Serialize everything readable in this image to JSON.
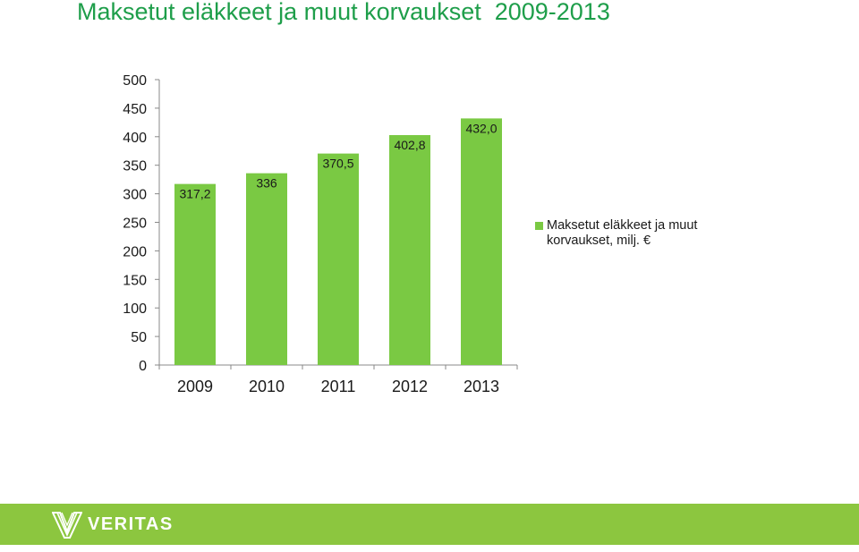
{
  "slide": {
    "title": "Maksetut eläkkeet ja muut korvaukset  2009-2013",
    "logo_text": "VERITAS",
    "footer_color": "#8cc63f",
    "title_color": "#1e9e4a"
  },
  "legend": {
    "label": "Maksetut eläkkeet ja muut korvaukset, milj. €",
    "placement": "right"
  },
  "chart_data": {
    "type": "bar",
    "title": "Maksetut eläkkeet ja muut korvaukset  2009-2013",
    "categories": [
      "2009",
      "2010",
      "2011",
      "2012",
      "2013"
    ],
    "series": [
      {
        "name": "Maksetut eläkkeet ja muut korvaukset, milj. €",
        "values": [
          317.2,
          336,
          370.5,
          402.8,
          432.0
        ],
        "labels": [
          "317,2",
          "336",
          "370,5",
          "402,8",
          "432,0"
        ],
        "color": "#7ac943"
      }
    ],
    "ylim": [
      0,
      500
    ],
    "yticks": [
      0,
      50,
      100,
      150,
      200,
      250,
      300,
      350,
      400,
      450,
      500
    ],
    "grid": false,
    "legend_position": "right",
    "xlabel": "",
    "ylabel": ""
  }
}
